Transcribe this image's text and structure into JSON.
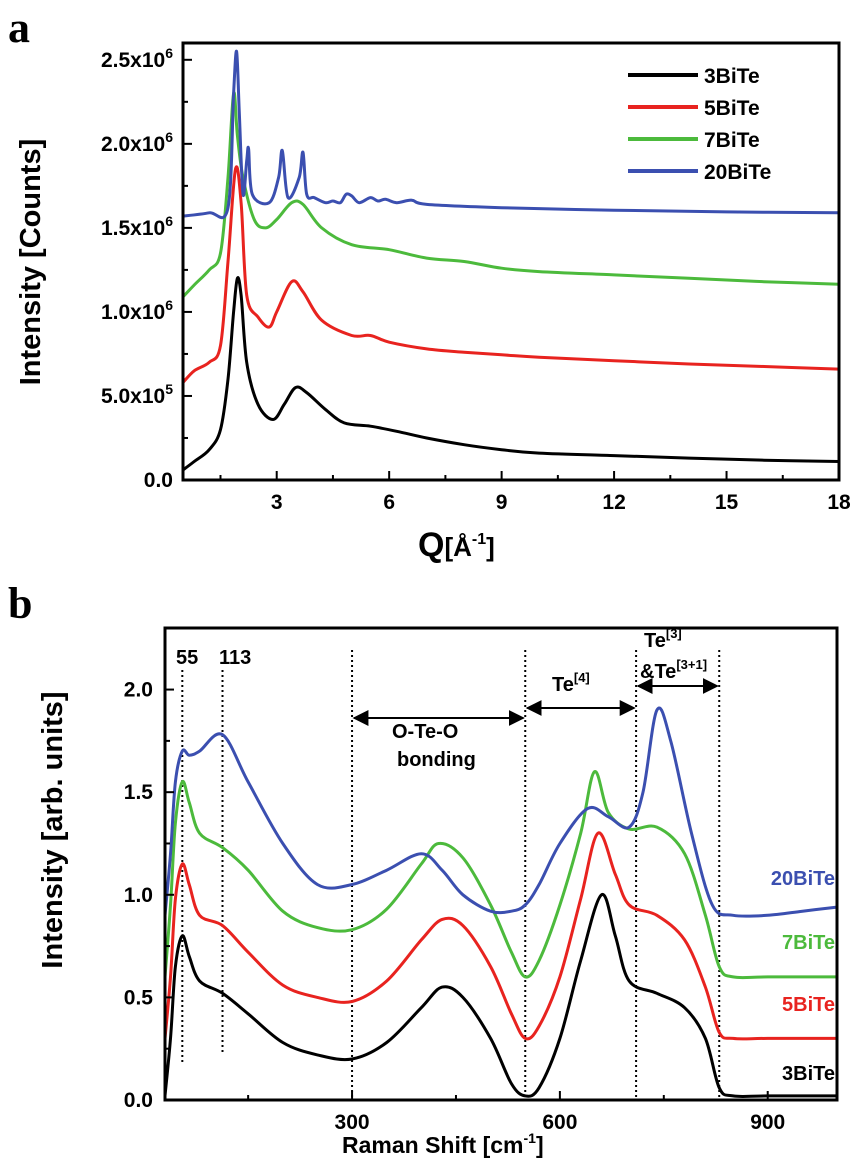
{
  "chart_data": [
    {
      "type": "line",
      "panel_label": "a",
      "xlabel": "Q[Å⁻¹]",
      "xlabel_main": "Q",
      "xlabel_unit": "[Å",
      "xlabel_sup": "-1",
      "xlabel_close": "]",
      "ylabel": "Intensity [Counts]",
      "xlim": [
        0.5,
        18
      ],
      "ylim": [
        0,
        2600000
      ],
      "x_ticks": [
        3,
        6,
        9,
        12,
        15,
        18
      ],
      "x_tick_labels": [
        "3",
        "6",
        "9",
        "12",
        "15",
        "18"
      ],
      "y_ticks": [
        0,
        500000,
        1000000,
        1500000,
        2000000,
        2500000
      ],
      "y_tick_labels": [
        {
          "mant": "0.0",
          "exp": ""
        },
        {
          "mant": "5.0x10",
          "exp": "5"
        },
        {
          "mant": "1.0x10",
          "exp": "6"
        },
        {
          "mant": "1.5x10",
          "exp": "6"
        },
        {
          "mant": "2.0x10",
          "exp": "6"
        },
        {
          "mant": "2.5x10",
          "exp": "6"
        }
      ],
      "legend_position": "top-right",
      "series": [
        {
          "name": "3BiTe",
          "color": "#000000",
          "points": [
            [
              0.5,
              60000
            ],
            [
              0.8,
              110000
            ],
            [
              1.2,
              180000
            ],
            [
              1.5,
              300000
            ],
            [
              1.7,
              600000
            ],
            [
              1.85,
              1000000
            ],
            [
              1.95,
              1200000
            ],
            [
              2.05,
              1100000
            ],
            [
              2.2,
              700000
            ],
            [
              2.5,
              450000
            ],
            [
              2.9,
              360000
            ],
            [
              3.2,
              450000
            ],
            [
              3.5,
              550000
            ],
            [
              3.8,
              520000
            ],
            [
              4.3,
              420000
            ],
            [
              4.8,
              340000
            ],
            [
              5.5,
              320000
            ],
            [
              6.2,
              290000
            ],
            [
              7.0,
              250000
            ],
            [
              8.0,
              210000
            ],
            [
              9.0,
              180000
            ],
            [
              10,
              160000
            ],
            [
              12,
              145000
            ],
            [
              14,
              130000
            ],
            [
              16,
              118000
            ],
            [
              18,
              110000
            ]
          ]
        },
        {
          "name": "5BiTe",
          "color": "#e8231f",
          "points": [
            [
              0.5,
              580000
            ],
            [
              0.8,
              650000
            ],
            [
              1.2,
              700000
            ],
            [
              1.5,
              800000
            ],
            [
              1.7,
              1300000
            ],
            [
              1.9,
              1850000
            ],
            [
              2.05,
              1650000
            ],
            [
              2.2,
              1100000
            ],
            [
              2.5,
              970000
            ],
            [
              2.8,
              910000
            ],
            [
              3.0,
              1000000
            ],
            [
              3.4,
              1180000
            ],
            [
              3.7,
              1120000
            ],
            [
              4.2,
              950000
            ],
            [
              5.0,
              860000
            ],
            [
              5.5,
              860000
            ],
            [
              6.0,
              820000
            ],
            [
              7.0,
              780000
            ],
            [
              8.0,
              760000
            ],
            [
              9.0,
              745000
            ],
            [
              10,
              730000
            ],
            [
              12,
              710000
            ],
            [
              14,
              690000
            ],
            [
              16,
              675000
            ],
            [
              18,
              660000
            ]
          ]
        },
        {
          "name": "7BiTe",
          "color": "#4cba3c",
          "points": [
            [
              0.5,
              1090000
            ],
            [
              0.8,
              1160000
            ],
            [
              1.2,
              1250000
            ],
            [
              1.5,
              1350000
            ],
            [
              1.7,
              1800000
            ],
            [
              1.85,
              2300000
            ],
            [
              1.95,
              2050000
            ],
            [
              2.1,
              1800000
            ],
            [
              2.4,
              1550000
            ],
            [
              2.7,
              1500000
            ],
            [
              3.0,
              1550000
            ],
            [
              3.4,
              1650000
            ],
            [
              3.7,
              1640000
            ],
            [
              4.2,
              1500000
            ],
            [
              5.0,
              1400000
            ],
            [
              6.0,
              1370000
            ],
            [
              7.0,
              1320000
            ],
            [
              8.0,
              1300000
            ],
            [
              9.0,
              1260000
            ],
            [
              10,
              1240000
            ],
            [
              12,
              1220000
            ],
            [
              14,
              1200000
            ],
            [
              16,
              1180000
            ],
            [
              18,
              1165000
            ]
          ]
        },
        {
          "name": "20BiTe",
          "color": "#3b4fb0",
          "points": [
            [
              0.5,
              1570000
            ],
            [
              1.2,
              1590000
            ],
            [
              1.7,
              1620000
            ],
            [
              1.85,
              2300000
            ],
            [
              1.93,
              2550000
            ],
            [
              2.0,
              2200000
            ],
            [
              2.1,
              1700000
            ],
            [
              2.2,
              1900000
            ],
            [
              2.25,
              1970000
            ],
            [
              2.35,
              1700000
            ],
            [
              2.8,
              1650000
            ],
            [
              3.05,
              1800000
            ],
            [
              3.15,
              1960000
            ],
            [
              3.3,
              1680000
            ],
            [
              3.6,
              1800000
            ],
            [
              3.7,
              1950000
            ],
            [
              3.8,
              1700000
            ],
            [
              4.0,
              1680000
            ],
            [
              4.3,
              1650000
            ],
            [
              4.5,
              1660000
            ],
            [
              4.7,
              1650000
            ],
            [
              4.85,
              1700000
            ],
            [
              5.0,
              1690000
            ],
            [
              5.2,
              1650000
            ],
            [
              5.5,
              1680000
            ],
            [
              5.7,
              1660000
            ],
            [
              5.9,
              1670000
            ],
            [
              6.2,
              1650000
            ],
            [
              6.6,
              1665000
            ],
            [
              7.0,
              1640000
            ],
            [
              9.0,
              1620000
            ],
            [
              12,
              1605000
            ],
            [
              15,
              1595000
            ],
            [
              18,
              1590000
            ]
          ]
        }
      ]
    },
    {
      "type": "line",
      "panel_label": "b",
      "xlabel": "Raman Shift [cm⁻¹]",
      "xlabel_main": "Raman Shift [cm",
      "xlabel_sup": "-1",
      "xlabel_close": "]",
      "ylabel": "Intensity [arb. units]",
      "xlim": [
        30,
        1000
      ],
      "ylim": [
        0,
        2.3
      ],
      "x_ticks": [
        300,
        600,
        900
      ],
      "x_tick_labels": [
        "300",
        "600",
        "900"
      ],
      "y_ticks": [
        0,
        0.5,
        1.0,
        1.5,
        2.0
      ],
      "y_tick_labels": [
        "0.0",
        "0.5",
        "1.0",
        "1.5",
        "2.0"
      ],
      "vertical_lines": [
        55,
        113,
        300,
        550,
        710,
        830
      ],
      "annotations": {
        "peak_55": "55",
        "peak_113": "113",
        "oteo_line1": "O-Te-O",
        "oteo_line2": "bonding",
        "te4_main": "Te",
        "te4_sup": "[4]",
        "te3_main": "Te",
        "te3_sup": "[3]",
        "te31_main": "&Te",
        "te31_sup": "[3+1]"
      },
      "series": [
        {
          "name": "3BiTe",
          "color": "#000000",
          "points": [
            [
              30,
              0.02
            ],
            [
              38,
              0.3
            ],
            [
              45,
              0.65
            ],
            [
              55,
              0.8
            ],
            [
              65,
              0.7
            ],
            [
              80,
              0.58
            ],
            [
              113,
              0.52
            ],
            [
              150,
              0.42
            ],
            [
              200,
              0.28
            ],
            [
              250,
              0.22
            ],
            [
              300,
              0.2
            ],
            [
              350,
              0.28
            ],
            [
              400,
              0.45
            ],
            [
              430,
              0.55
            ],
            [
              460,
              0.5
            ],
            [
              500,
              0.3
            ],
            [
              530,
              0.08
            ],
            [
              550,
              0.02
            ],
            [
              570,
              0.06
            ],
            [
              600,
              0.3
            ],
            [
              630,
              0.68
            ],
            [
              660,
              1.0
            ],
            [
              680,
              0.8
            ],
            [
              700,
              0.58
            ],
            [
              740,
              0.52
            ],
            [
              780,
              0.45
            ],
            [
              810,
              0.3
            ],
            [
              830,
              0.06
            ],
            [
              850,
              0.02
            ],
            [
              900,
              0.02
            ],
            [
              1000,
              0.02
            ]
          ]
        },
        {
          "name": "5BiTe",
          "color": "#e8231f",
          "points": [
            [
              30,
              0.3
            ],
            [
              38,
              0.6
            ],
            [
              45,
              0.98
            ],
            [
              55,
              1.15
            ],
            [
              65,
              1.05
            ],
            [
              80,
              0.9
            ],
            [
              113,
              0.85
            ],
            [
              150,
              0.72
            ],
            [
              200,
              0.56
            ],
            [
              250,
              0.5
            ],
            [
              300,
              0.48
            ],
            [
              350,
              0.58
            ],
            [
              400,
              0.78
            ],
            [
              430,
              0.88
            ],
            [
              460,
              0.85
            ],
            [
              500,
              0.65
            ],
            [
              530,
              0.42
            ],
            [
              550,
              0.3
            ],
            [
              570,
              0.36
            ],
            [
              600,
              0.6
            ],
            [
              630,
              0.98
            ],
            [
              655,
              1.3
            ],
            [
              680,
              1.1
            ],
            [
              700,
              0.95
            ],
            [
              740,
              0.9
            ],
            [
              780,
              0.78
            ],
            [
              810,
              0.55
            ],
            [
              830,
              0.33
            ],
            [
              850,
              0.3
            ],
            [
              900,
              0.3
            ],
            [
              1000,
              0.3
            ]
          ]
        },
        {
          "name": "7BiTe",
          "color": "#4cba3c",
          "points": [
            [
              30,
              0.6
            ],
            [
              38,
              0.95
            ],
            [
              45,
              1.35
            ],
            [
              55,
              1.55
            ],
            [
              65,
              1.45
            ],
            [
              80,
              1.3
            ],
            [
              113,
              1.23
            ],
            [
              150,
              1.12
            ],
            [
              200,
              0.92
            ],
            [
              250,
              0.84
            ],
            [
              300,
              0.83
            ],
            [
              350,
              0.93
            ],
            [
              400,
              1.15
            ],
            [
              425,
              1.25
            ],
            [
              460,
              1.18
            ],
            [
              500,
              0.95
            ],
            [
              530,
              0.72
            ],
            [
              550,
              0.6
            ],
            [
              570,
              0.68
            ],
            [
              600,
              0.95
            ],
            [
              630,
              1.3
            ],
            [
              650,
              1.6
            ],
            [
              670,
              1.4
            ],
            [
              700,
              1.32
            ],
            [
              740,
              1.33
            ],
            [
              780,
              1.2
            ],
            [
              810,
              0.9
            ],
            [
              830,
              0.65
            ],
            [
              850,
              0.6
            ],
            [
              900,
              0.6
            ],
            [
              1000,
              0.6
            ]
          ]
        },
        {
          "name": "20BiTe",
          "color": "#3b4fb0",
          "points": [
            [
              30,
              0.9
            ],
            [
              38,
              1.2
            ],
            [
              45,
              1.55
            ],
            [
              55,
              1.7
            ],
            [
              65,
              1.68
            ],
            [
              80,
              1.7
            ],
            [
              113,
              1.78
            ],
            [
              150,
              1.55
            ],
            [
              200,
              1.25
            ],
            [
              250,
              1.05
            ],
            [
              300,
              1.05
            ],
            [
              350,
              1.12
            ],
            [
              400,
              1.2
            ],
            [
              430,
              1.12
            ],
            [
              460,
              1.0
            ],
            [
              500,
              0.92
            ],
            [
              530,
              0.92
            ],
            [
              550,
              0.95
            ],
            [
              570,
              1.05
            ],
            [
              600,
              1.25
            ],
            [
              640,
              1.42
            ],
            [
              670,
              1.38
            ],
            [
              700,
              1.33
            ],
            [
              720,
              1.5
            ],
            [
              740,
              1.9
            ],
            [
              760,
              1.75
            ],
            [
              790,
              1.3
            ],
            [
              820,
              0.95
            ],
            [
              850,
              0.9
            ],
            [
              900,
              0.9
            ],
            [
              950,
              0.92
            ],
            [
              1000,
              0.94
            ]
          ]
        }
      ]
    }
  ]
}
